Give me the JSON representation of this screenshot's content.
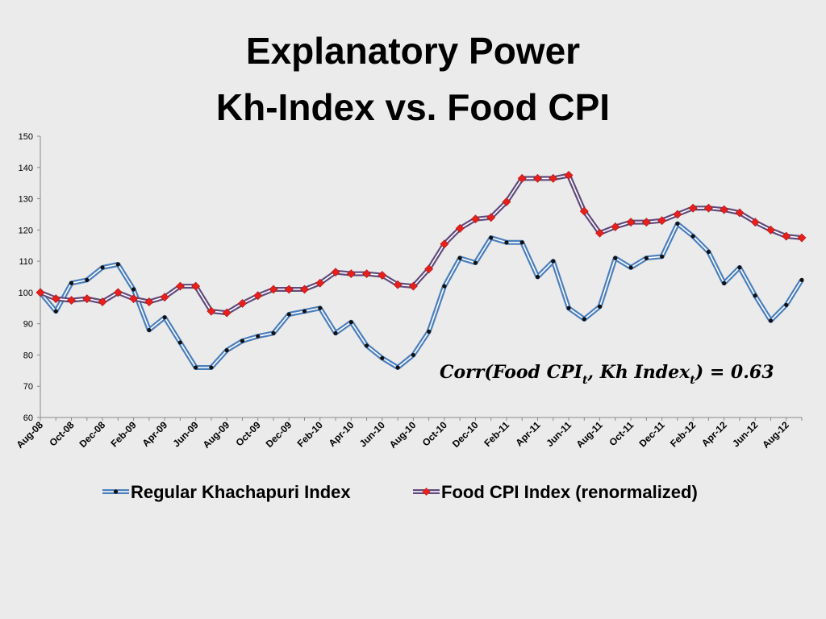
{
  "slide": {
    "title_line1": "Explanatory Power",
    "title_line2": "Kh-Index vs. Food CPI"
  },
  "annotation": {
    "text_prefix": "Corr(Food CPI",
    "sub1": "t",
    "text_middle": ", Kh Index",
    "sub2": "t",
    "text_suffix": ") = 0.63"
  },
  "chart_data": {
    "type": "line",
    "title": "Explanatory Power Kh-Index vs. Food CPI",
    "ylim": [
      60,
      150
    ],
    "yticks": [
      60,
      70,
      80,
      90,
      100,
      110,
      120,
      130,
      140,
      150
    ],
    "grid": false,
    "legend_position": "bottom",
    "x": [
      "Aug-08",
      "Sep-08",
      "Oct-08",
      "Nov-08",
      "Dec-08",
      "Jan-09",
      "Feb-09",
      "Mar-09",
      "Apr-09",
      "May-09",
      "Jun-09",
      "Jul-09",
      "Aug-09",
      "Sep-09",
      "Oct-09",
      "Nov-09",
      "Dec-09",
      "Jan-10",
      "Feb-10",
      "Mar-10",
      "Apr-10",
      "May-10",
      "Jun-10",
      "Jul-10",
      "Aug-10",
      "Sep-10",
      "Oct-10",
      "Nov-10",
      "Dec-10",
      "Jan-11",
      "Feb-11",
      "Mar-11",
      "Apr-11",
      "May-11",
      "Jun-11",
      "Jul-11",
      "Aug-11",
      "Sep-11",
      "Oct-11",
      "Nov-11",
      "Dec-11",
      "Jan-12",
      "Feb-12",
      "Mar-12",
      "Apr-12",
      "May-12",
      "Jun-12",
      "Jul-12",
      "Aug-12",
      "Sep-12"
    ],
    "x_tick_labels": [
      "Aug-08",
      "Oct-08",
      "Dec-08",
      "Feb-09",
      "Apr-09",
      "Jun-09",
      "Aug-09",
      "Oct-09",
      "Dec-09",
      "Feb-10",
      "Apr-10",
      "Jun-10",
      "Aug-10",
      "Oct-10",
      "Dec-10",
      "Feb-11",
      "Apr-11",
      "Jun-11",
      "Aug-11",
      "Oct-11",
      "Dec-11",
      "Feb-12",
      "Apr-12",
      "Jun-12",
      "Aug-12"
    ],
    "series": [
      {
        "name": "Regular Khachapuri Index",
        "color": "#4a7ebb",
        "marker": "circle",
        "values": [
          100,
          94,
          103,
          104,
          108,
          109,
          101,
          88,
          92,
          84,
          76,
          76,
          81.5,
          84.5,
          86,
          87,
          93,
          94,
          95,
          87,
          90.5,
          83,
          79,
          76,
          80,
          87.5,
          102,
          111,
          109.5,
          117.5,
          116,
          116,
          105,
          110,
          95,
          91.5,
          95.5,
          111,
          108,
          111,
          111.5,
          122,
          118,
          113,
          103,
          108,
          99,
          91,
          96,
          104
        ]
      },
      {
        "name": "Food CPI Index (renormalized)",
        "color": "#604a7b",
        "marker": "diamond",
        "values": [
          100,
          98,
          97.5,
          98,
          97,
          100,
          98,
          97,
          98.5,
          102,
          102,
          94,
          93.5,
          96.5,
          99,
          101,
          101,
          101,
          103,
          106.5,
          106,
          106,
          105.5,
          102.5,
          102,
          107.5,
          115.5,
          120.5,
          123.5,
          124,
          129,
          136.5,
          136.5,
          136.5,
          137.5,
          126,
          119,
          121,
          122.5,
          122.5,
          123,
          125,
          127,
          127,
          126.5,
          125.5,
          122.5,
          120,
          118,
          117.5
        ]
      }
    ]
  }
}
